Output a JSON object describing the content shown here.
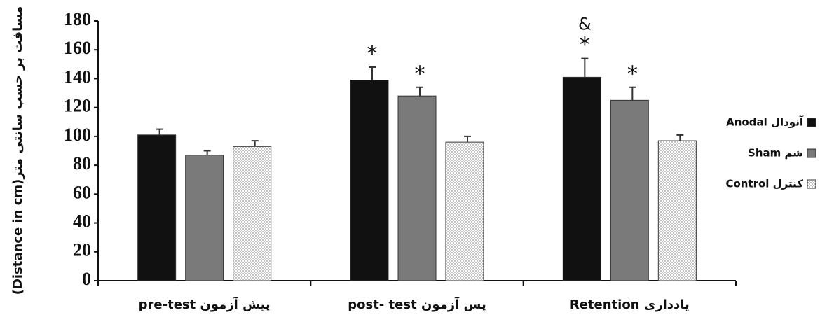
{
  "chart_data": {
    "type": "bar",
    "y_label": "(Distance in cm)مسافت بر حسب سانتی متر",
    "categories": [
      "pre-test  پیش آزمون",
      "post- test  پس آزمون",
      "Retention  یادداری"
    ],
    "series": [
      {
        "name": "Anodal  آنودال",
        "color": "#111111",
        "values": [
          101,
          139,
          141
        ],
        "errors": [
          4,
          9,
          13
        ],
        "annotations": [
          null,
          "*",
          "*"
        ],
        "top_annotations": [
          null,
          null,
          "&"
        ]
      },
      {
        "name": "Sham     شم",
        "color": "#7a7a7a",
        "values": [
          87,
          128,
          125
        ],
        "errors": [
          3,
          6,
          9
        ],
        "annotations": [
          null,
          "*",
          "*"
        ]
      },
      {
        "name": "Control  کنترل",
        "color": "dotted",
        "values": [
          93,
          96,
          97
        ],
        "errors": [
          4,
          4,
          4
        ]
      }
    ],
    "ylim": [
      0,
      180
    ],
    "yticks": [
      0,
      20,
      40,
      60,
      80,
      100,
      120,
      140,
      160,
      180
    ],
    "grid": false,
    "legend": "right"
  }
}
